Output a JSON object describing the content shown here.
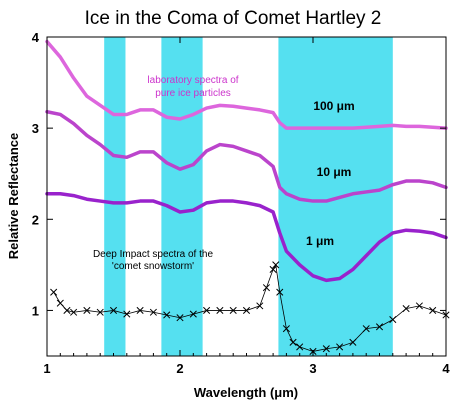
{
  "chart_data": {
    "type": "line",
    "title": "Ice in the Coma of Comet Hartley 2",
    "xlabel": "Wavelength (μm)",
    "ylabel": "Relative Reflectance",
    "xlim": [
      1,
      4
    ],
    "ylim": [
      0.5,
      4
    ],
    "x_ticks": [
      1,
      2,
      3,
      4
    ],
    "x_tick_labels": [
      "1",
      "2",
      "3",
      "4"
    ],
    "y_ticks": [
      1,
      2,
      3,
      4
    ],
    "y_tick_labels": [
      "1",
      "2",
      "3",
      "4"
    ],
    "grid": false,
    "legend": "none",
    "highlight_bands": [
      [
        1.43,
        1.59
      ],
      [
        1.86,
        2.17
      ],
      [
        2.74,
        3.6
      ]
    ],
    "highlight_color": "#55e0f0",
    "annotations": {
      "lab": [
        "laboratory spectra of",
        "pure ice particles"
      ],
      "di": [
        "Deep Impact spectra of the",
        "'comet snowstorm'"
      ]
    },
    "series": [
      {
        "name": "100 μm",
        "color": "#dd66dd",
        "x": [
          1.0,
          1.1,
          1.2,
          1.3,
          1.4,
          1.5,
          1.6,
          1.7,
          1.8,
          1.9,
          2.0,
          2.1,
          2.2,
          2.3,
          2.4,
          2.5,
          2.6,
          2.7,
          2.75,
          2.8,
          2.9,
          3.0,
          3.1,
          3.2,
          3.3,
          3.4,
          3.5,
          3.6,
          3.7,
          3.8,
          3.9,
          4.0
        ],
        "y": [
          3.95,
          3.78,
          3.55,
          3.35,
          3.25,
          3.15,
          3.15,
          3.2,
          3.2,
          3.12,
          3.1,
          3.15,
          3.22,
          3.25,
          3.24,
          3.22,
          3.2,
          3.17,
          3.06,
          3.0,
          3.0,
          3.0,
          3.0,
          3.0,
          3.0,
          3.01,
          3.02,
          3.03,
          3.02,
          3.02,
          3.01,
          3.0
        ]
      },
      {
        "name": "10 μm",
        "color": "#bb44cc",
        "x": [
          1.0,
          1.1,
          1.2,
          1.3,
          1.4,
          1.5,
          1.6,
          1.7,
          1.8,
          1.9,
          2.0,
          2.1,
          2.2,
          2.3,
          2.4,
          2.5,
          2.6,
          2.7,
          2.75,
          2.8,
          2.9,
          3.0,
          3.1,
          3.2,
          3.3,
          3.4,
          3.5,
          3.6,
          3.7,
          3.8,
          3.9,
          4.0
        ],
        "y": [
          3.18,
          3.15,
          3.05,
          2.92,
          2.82,
          2.7,
          2.68,
          2.74,
          2.74,
          2.62,
          2.55,
          2.6,
          2.75,
          2.82,
          2.8,
          2.75,
          2.7,
          2.58,
          2.35,
          2.28,
          2.22,
          2.2,
          2.2,
          2.24,
          2.28,
          2.3,
          2.32,
          2.38,
          2.42,
          2.42,
          2.4,
          2.35
        ]
      },
      {
        "name": "1 μm",
        "color": "#9922cc",
        "x": [
          1.0,
          1.1,
          1.2,
          1.3,
          1.4,
          1.5,
          1.6,
          1.7,
          1.8,
          1.9,
          2.0,
          2.1,
          2.2,
          2.3,
          2.4,
          2.5,
          2.6,
          2.7,
          2.75,
          2.8,
          2.9,
          3.0,
          3.1,
          3.2,
          3.3,
          3.4,
          3.5,
          3.6,
          3.7,
          3.8,
          3.9,
          4.0
        ],
        "y": [
          2.28,
          2.28,
          2.26,
          2.22,
          2.2,
          2.18,
          2.18,
          2.2,
          2.2,
          2.15,
          2.08,
          2.1,
          2.18,
          2.2,
          2.2,
          2.18,
          2.15,
          2.08,
          1.85,
          1.65,
          1.5,
          1.38,
          1.33,
          1.35,
          1.45,
          1.6,
          1.75,
          1.85,
          1.88,
          1.87,
          1.85,
          1.8
        ]
      },
      {
        "name": "Deep Impact spectra of the 'comet snowstorm'",
        "color": "#000000",
        "marker": "x",
        "x": [
          1.05,
          1.1,
          1.15,
          1.2,
          1.3,
          1.4,
          1.5,
          1.6,
          1.7,
          1.8,
          1.9,
          2.0,
          2.1,
          2.2,
          2.3,
          2.4,
          2.5,
          2.6,
          2.65,
          2.7,
          2.72,
          2.75,
          2.8,
          2.85,
          2.9,
          3.0,
          3.1,
          3.2,
          3.3,
          3.4,
          3.5,
          3.6,
          3.7,
          3.8,
          3.9,
          4.0
        ],
        "y": [
          1.2,
          1.08,
          1.0,
          0.98,
          1.0,
          0.98,
          1.0,
          0.96,
          1.0,
          0.98,
          0.95,
          0.92,
          0.96,
          1.0,
          1.0,
          1.0,
          1.0,
          1.05,
          1.25,
          1.45,
          1.5,
          1.2,
          0.8,
          0.65,
          0.6,
          0.55,
          0.58,
          0.6,
          0.65,
          0.8,
          0.82,
          0.9,
          1.02,
          1.05,
          1.0,
          0.95
        ]
      }
    ]
  }
}
